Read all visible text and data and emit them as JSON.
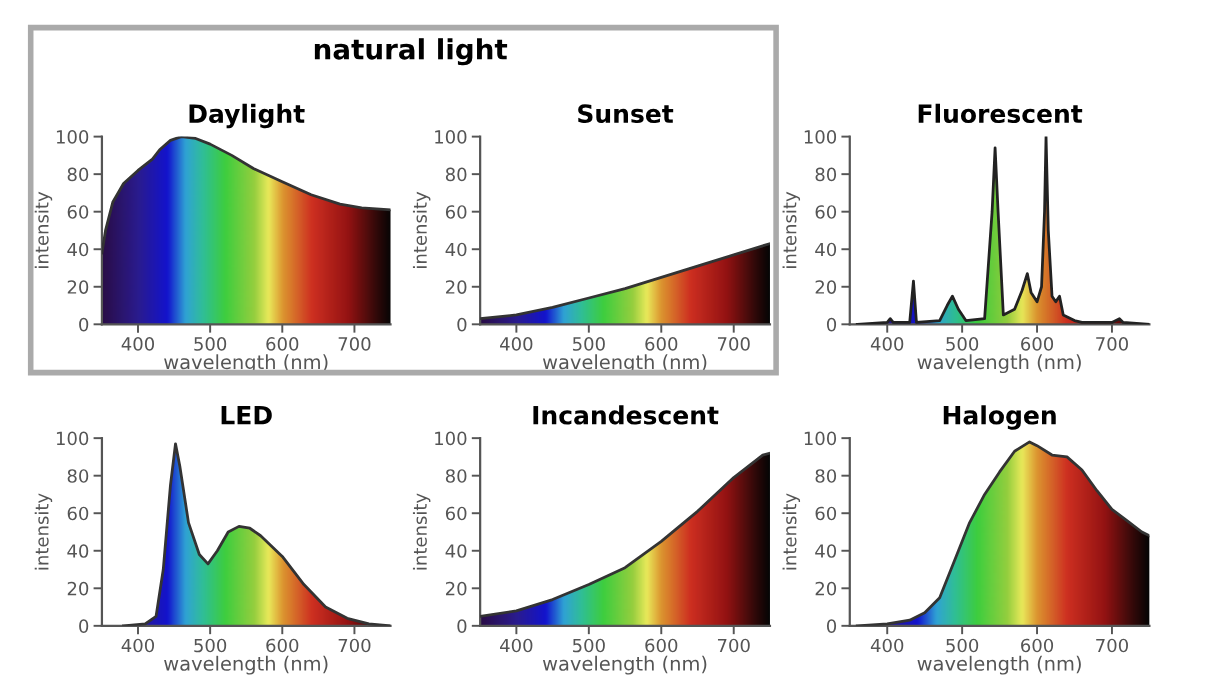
{
  "chart_data": [
    {
      "type": "area",
      "title": "Daylight",
      "xlabel": "wavelength (nm)",
      "ylabel": "intensity",
      "annotations": [
        "natural light"
      ],
      "xlim": [
        350,
        750
      ],
      "xticks": [
        400,
        500,
        600,
        700
      ],
      "ylim": [
        0,
        100
      ],
      "yticks": [
        0,
        20,
        40,
        60,
        80,
        100
      ],
      "series": [
        {
          "color": "#333333",
          "x": [
            350,
            355,
            365,
            380,
            400,
            420,
            430,
            445,
            460,
            480,
            500,
            530,
            560,
            600,
            640,
            680,
            710,
            750
          ],
          "values": [
            38,
            50,
            65,
            75,
            82,
            88,
            93,
            98,
            100,
            99,
            96,
            90,
            83,
            76,
            69,
            64,
            62,
            61
          ]
        }
      ]
    },
    {
      "type": "area",
      "title": "Sunset",
      "xlabel": "wavelength (nm)",
      "ylabel": "intensity",
      "xlim": [
        350,
        750
      ],
      "xticks": [
        400,
        500,
        600,
        700
      ],
      "ylim": [
        0,
        100
      ],
      "yticks": [
        0,
        20,
        40,
        60,
        80,
        100
      ],
      "series": [
        {
          "color": "#333333",
          "x": [
            350,
            400,
            450,
            500,
            550,
            600,
            650,
            700,
            750
          ],
          "values": [
            3,
            5,
            9,
            14,
            19,
            25,
            31,
            37,
            43
          ]
        }
      ]
    },
    {
      "type": "area",
      "title": "Fluorescent",
      "xlabel": "wavelength (nm)",
      "ylabel": "intensity",
      "xlim": [
        350,
        750
      ],
      "xticks": [
        400,
        500,
        600,
        700
      ],
      "ylim": [
        0,
        100
      ],
      "yticks": [
        0,
        20,
        40,
        60,
        80,
        100
      ],
      "series": [
        {
          "color": "#222222",
          "x": [
            360,
            400,
            404,
            408,
            430,
            435,
            439,
            470,
            480,
            487,
            495,
            505,
            530,
            540,
            544,
            548,
            555,
            570,
            580,
            587,
            592,
            600,
            606,
            610,
            612,
            615,
            620,
            625,
            630,
            635,
            650,
            660,
            700,
            710,
            715,
            750
          ],
          "values": [
            0,
            1,
            3,
            1,
            1,
            23,
            1,
            2,
            10,
            15,
            8,
            2,
            3,
            60,
            94,
            60,
            5,
            8,
            18,
            27,
            17,
            12,
            20,
            60,
            100,
            50,
            15,
            12,
            15,
            5,
            2,
            1,
            1,
            3,
            1,
            0
          ]
        }
      ]
    },
    {
      "type": "area",
      "title": "LED",
      "xlabel": "wavelength (nm)",
      "ylabel": "intensity",
      "xlim": [
        350,
        750
      ],
      "xticks": [
        400,
        500,
        600,
        700
      ],
      "ylim": [
        0,
        100
      ],
      "yticks": [
        0,
        20,
        40,
        60,
        80,
        100
      ],
      "series": [
        {
          "color": "#333333",
          "x": [
            380,
            410,
            425,
            435,
            445,
            452,
            458,
            470,
            485,
            497,
            510,
            525,
            540,
            555,
            570,
            600,
            630,
            660,
            690,
            720,
            750
          ],
          "values": [
            0,
            1,
            5,
            30,
            75,
            97,
            85,
            55,
            38,
            33,
            40,
            50,
            53,
            52,
            48,
            37,
            22,
            10,
            4,
            1,
            0
          ]
        }
      ]
    },
    {
      "type": "area",
      "title": "Incandescent",
      "xlabel": "wavelength (nm)",
      "ylabel": "intensity",
      "xlim": [
        350,
        750
      ],
      "xticks": [
        400,
        500,
        600,
        700
      ],
      "ylim": [
        0,
        100
      ],
      "yticks": [
        0,
        20,
        40,
        60,
        80,
        100
      ],
      "series": [
        {
          "color": "#333333",
          "x": [
            350,
            400,
            450,
            500,
            550,
            600,
            650,
            700,
            740,
            750
          ],
          "values": [
            5,
            8,
            14,
            22,
            31,
            45,
            61,
            79,
            91,
            92
          ]
        }
      ]
    },
    {
      "type": "area",
      "title": "Halogen",
      "xlabel": "wavelength (nm)",
      "ylabel": "intensity",
      "xlim": [
        350,
        750
      ],
      "xticks": [
        400,
        500,
        600,
        700
      ],
      "ylim": [
        0,
        100
      ],
      "yticks": [
        0,
        20,
        40,
        60,
        80,
        100
      ],
      "series": [
        {
          "color": "#333333",
          "x": [
            360,
            400,
            430,
            450,
            470,
            490,
            510,
            530,
            550,
            570,
            590,
            600,
            620,
            640,
            660,
            680,
            700,
            720,
            740,
            750
          ],
          "values": [
            0,
            1,
            3,
            7,
            15,
            35,
            55,
            70,
            82,
            93,
            98,
            96,
            91,
            90,
            83,
            72,
            62,
            56,
            50,
            48
          ]
        }
      ]
    }
  ]
}
